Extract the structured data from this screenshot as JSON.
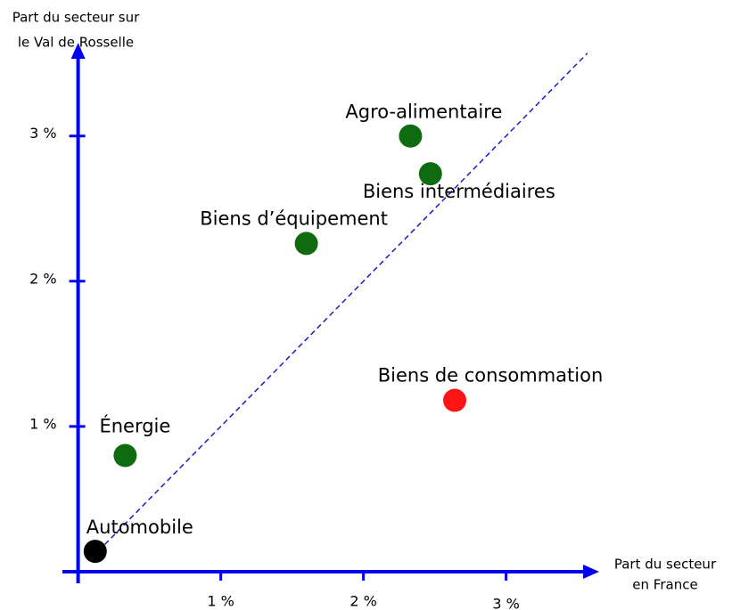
{
  "chart_data": {
    "type": "scatter",
    "ylabel": [
      "Part du secteur sur",
      "le Val de Rosselle"
    ],
    "xlabel": [
      "Part du secteur",
      "en France"
    ],
    "labels": [
      "Automobile",
      "Énergie",
      "Biens d’équipement",
      "Agro-alimentaire",
      "Biens intermédiaires",
      "Biens de consommation"
    ],
    "x": [
      0.12,
      0.33,
      1.6,
      2.33,
      2.47,
      2.64
    ],
    "y": [
      0.14,
      0.8,
      2.26,
      3.0,
      2.74,
      1.18
    ],
    "colors": [
      "#000000",
      "#0f6b0f",
      "#0f6b0f",
      "#0f6b0f",
      "#0f6b0f",
      "#ff1414"
    ],
    "xlim": [
      -0.11,
      3.64
    ],
    "ylim": [
      -0.08,
      3.63
    ],
    "xticks": [
      {
        "value": 1,
        "label": "1 %"
      },
      {
        "value": 2,
        "label": "2 %"
      },
      {
        "value": 3,
        "label": "3 %"
      }
    ],
    "yticks": [
      {
        "value": 1,
        "label": "1 %"
      },
      {
        "value": 2,
        "label": "2 %"
      },
      {
        "value": 3,
        "label": "3 %"
      }
    ],
    "axis_color": "#0000ee",
    "diagonal": {
      "color": "#1a1acc",
      "dashed": true
    }
  }
}
